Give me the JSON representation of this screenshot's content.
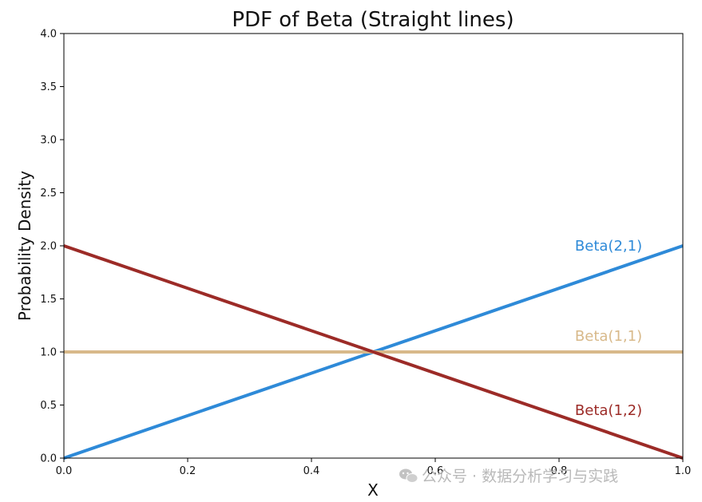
{
  "chart_data": {
    "type": "line",
    "title": "PDF of Beta (Straight lines)",
    "xlabel": "X",
    "ylabel": "Probability Density",
    "xlim": [
      0,
      1
    ],
    "ylim": [
      0,
      4
    ],
    "x_ticks": [
      "0.0",
      "0.2",
      "0.4",
      "0.6",
      "0.8",
      "1.0"
    ],
    "y_ticks": [
      "0.0",
      "0.5",
      "1.0",
      "1.5",
      "2.0",
      "2.5",
      "3.0",
      "3.5",
      "4.0"
    ],
    "grid": false,
    "series": [
      {
        "name": "Beta(2,1)",
        "color": "#2e8ad8",
        "x": [
          0,
          1
        ],
        "y": [
          0,
          2
        ],
        "label_at": [
          0.88,
          2.0
        ]
      },
      {
        "name": "Beta(1,1)",
        "color": "#d8b98a",
        "x": [
          0,
          1
        ],
        "y": [
          1,
          1
        ],
        "label_at": [
          0.88,
          1.15
        ]
      },
      {
        "name": "Beta(1,2)",
        "color": "#9c2b27",
        "x": [
          0,
          1
        ],
        "y": [
          2,
          0
        ],
        "label_at": [
          0.88,
          0.45
        ]
      }
    ]
  },
  "watermark": {
    "icon": "wechat-icon",
    "text": "公众号 · 数据分析学习与实践"
  }
}
